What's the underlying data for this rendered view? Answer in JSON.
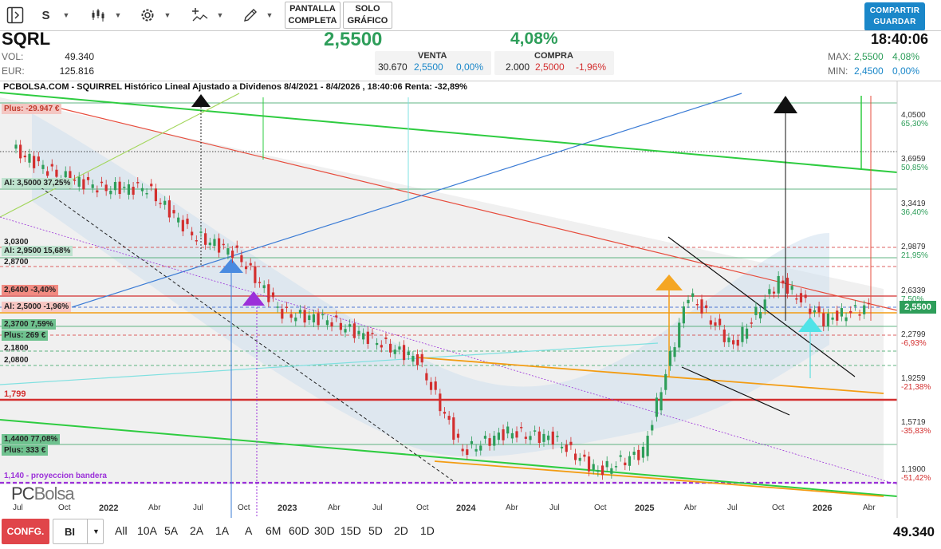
{
  "toolbar": {
    "symbol_letter": "S",
    "fullscreen_line1": "PANTALLA",
    "fullscreen_line2": "COMPLETA",
    "chart_only_line1": "SOLO",
    "chart_only_line2": "GRÁFICO",
    "share_line1": "COMPARTIR",
    "share_line2": "GUARDAR"
  },
  "quote": {
    "ticker": "SQRL",
    "vol_label": "VOL:",
    "vol_value": "49.340",
    "eur_label": "EUR:",
    "eur_value": "125.816",
    "last_price": "2,5500",
    "pct_change": "4,08%",
    "time": "18:40:06",
    "bid_title": "VENTA",
    "bid_qty": "30.670",
    "bid_price": "2,5500",
    "bid_pct": "0,00%",
    "ask_title": "COMPRA",
    "ask_qty": "2.000",
    "ask_price": "2,5000",
    "ask_pct": "-1,96%",
    "max_label": "MAX:",
    "max_price": "2,5500",
    "max_pct": "4,08%",
    "min_label": "MIN:",
    "min_price": "2,4500",
    "min_pct": "0,00%"
  },
  "chart": {
    "title": "PCBOLSA.COM - SQUIRREL Histórico Lineal Ajustado a Dividenos 8/4/2021 - 8/4/2026 , 18:40:06 Renta: -32,89%",
    "current_price_tag": "2,5500",
    "logo_pc": "PC",
    "logo_bolsa": "Bolsa",
    "left_tags": [
      {
        "text": "Plus: -29.947 €",
        "color": "#c0392b",
        "bg": "#f4c7c3"
      },
      {
        "text": "Al: 3,5000  37,25%",
        "color": "#222",
        "bg": "#bfe3cf"
      },
      {
        "text": "3,0300",
        "color": "#222",
        "bg": ""
      },
      {
        "text": "Al: 2,9500  15,68%",
        "color": "#222",
        "bg": "#bfe3cf"
      },
      {
        "text": "2,8700",
        "color": "#222",
        "bg": ""
      },
      {
        "text": "2,6400  -3,40%",
        "color": "#222",
        "bg": "#f28b82"
      },
      {
        "text": "Al: 2,5000  -1,96%",
        "color": "#222",
        "bg": "#f7c6c2"
      },
      {
        "text": "2,3700  7,59%",
        "color": "#222",
        "bg": "#6fc28f"
      },
      {
        "text": "Plus: 269 €",
        "color": "#222",
        "bg": "#6fc28f"
      },
      {
        "text": "2,1800",
        "color": "#222",
        "bg": ""
      },
      {
        "text": "2,0800",
        "color": "#222",
        "bg": ""
      },
      {
        "text": "1,799",
        "color": "#d32f2f",
        "bg": ""
      },
      {
        "text": "1,4400  77,08%",
        "color": "#222",
        "bg": "#6fc28f"
      },
      {
        "text": "Plus: 333 €",
        "color": "#222",
        "bg": "#6fc28f"
      },
      {
        "text": "1,140 - proyeccion bandera",
        "color": "#9b30d9",
        "bg": ""
      }
    ],
    "y_axis": [
      {
        "price": "4,0500",
        "pct": "65,30%",
        "pct_color": "#2e9e5a"
      },
      {
        "price": "3,6959",
        "pct": "50,85%",
        "pct_color": "#2e9e5a"
      },
      {
        "price": "3,3419",
        "pct": "36,40%",
        "pct_color": "#2e9e5a"
      },
      {
        "price": "2,9879",
        "pct": "21,95%",
        "pct_color": "#2e9e5a"
      },
      {
        "price": "2,6339",
        "pct": "7,50%",
        "pct_color": "#2e9e5a"
      },
      {
        "price": "2,2799",
        "pct": "-6,93%",
        "pct_color": "#d32f2f"
      },
      {
        "price": "1,9259",
        "pct": "-21,38%",
        "pct_color": "#d32f2f"
      },
      {
        "price": "1,5719",
        "pct": "-35,83%",
        "pct_color": "#d32f2f"
      },
      {
        "price": "1,1900",
        "pct": "-51,42%",
        "pct_color": "#d32f2f"
      }
    ],
    "x_axis": [
      {
        "label": "Jul",
        "year": false
      },
      {
        "label": "Oct",
        "year": false
      },
      {
        "label": "2022",
        "year": true
      },
      {
        "label": "Abr",
        "year": false
      },
      {
        "label": "Jul",
        "year": false
      },
      {
        "label": "Oct",
        "year": false
      },
      {
        "label": "2023",
        "year": true
      },
      {
        "label": "Abr",
        "year": false
      },
      {
        "label": "Jul",
        "year": false
      },
      {
        "label": "Oct",
        "year": false
      },
      {
        "label": "2024",
        "year": true
      },
      {
        "label": "Abr",
        "year": false
      },
      {
        "label": "Jul",
        "year": false
      },
      {
        "label": "Oct",
        "year": false
      },
      {
        "label": "2025",
        "year": true
      },
      {
        "label": "Abr",
        "year": false
      },
      {
        "label": "Jul",
        "year": false
      },
      {
        "label": "Oct",
        "year": false
      },
      {
        "label": "2026",
        "year": true
      },
      {
        "label": "Abr",
        "year": false
      }
    ]
  },
  "chart_data": {
    "type": "line",
    "title": "PCBOLSA.COM - SQUIRREL Histórico Lineal Ajustado a Dividenos 8/4/2021 - 8/4/2026 , 18:40:06 Renta: -32,89%",
    "xlabel": "",
    "ylabel": "",
    "ylim": [
      1.05,
      4.2
    ],
    "x": [
      "2021-07",
      "2021-10",
      "2022-01",
      "2022-04",
      "2022-07",
      "2022-10",
      "2023-01",
      "2023-04",
      "2023-07",
      "2023-10",
      "2024-01",
      "2024-04",
      "2024-07",
      "2024-10",
      "2025-01",
      "2025-04",
      "2025-07",
      "2025-10",
      "2026-01",
      "2026-04"
    ],
    "series": [
      {
        "values": [
          3.75,
          3.55,
          3.45,
          3.45,
          3.1,
          2.95,
          2.5,
          2.45,
          2.3,
          2.15,
          1.45,
          1.6,
          1.55,
          1.3,
          1.45,
          2.65,
          2.25,
          2.75,
          2.45,
          2.55
        ]
      }
    ],
    "grid": true
  },
  "bottom": {
    "config_label": "CONFG.",
    "period_value": "BI",
    "timeframes": [
      "All",
      "10A",
      "5A",
      "2A",
      "1A",
      "A",
      "6M",
      "60D",
      "30D",
      "15D",
      "5D",
      "2D",
      "1D"
    ],
    "volume": "49.340"
  },
  "colors": {
    "up": "#2e9e5a",
    "down": "#d32f2f",
    "accent": "#1a87c9"
  }
}
